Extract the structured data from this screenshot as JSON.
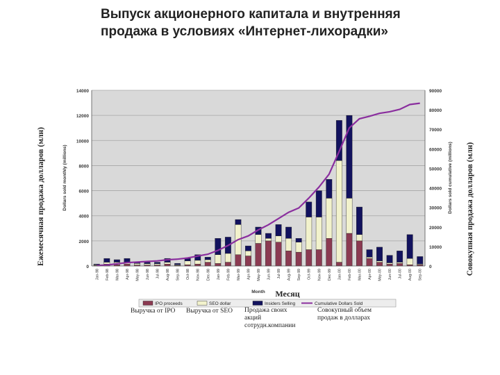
{
  "title_line1": "Выпуск акционерного капитала и внутренняя",
  "title_line2": "продажа в условиях «Интернет-лихорадки»",
  "overlay_labels": {
    "left_axis_ru": "Ежемесячная продажа долларов (млн)",
    "right_axis_ru": "Совокупная продажа долларов (млн)",
    "x_axis_ru": "Месяц",
    "legend_ipo_ru": "Выручка от IPO",
    "legend_seo_ru": "Выручка от SEO",
    "legend_insider_ru": "Продажа своих акций сотрудн.компании",
    "legend_cum_ru": "Совокупный объем продаж в долларах"
  },
  "colors": {
    "ipo": "#8b3a52",
    "seo": "#f2f2cc",
    "insider": "#12125e",
    "cumulative": "#8a2e9e",
    "plot_bg": "#d9d9d9",
    "grid": "#a6a6a6"
  },
  "chart_data": {
    "type": "bar",
    "stacked": true,
    "xlabel": "Month",
    "ylabel": "Dollars sold monthly (millions)",
    "y2label": "Dollars sold cumulative (millions)",
    "ylim": [
      0,
      14000
    ],
    "yticks": [
      "0",
      "2000",
      "4000",
      "6000",
      "8000",
      "10000",
      "12000",
      "14000"
    ],
    "y2lim": [
      0,
      90000
    ],
    "y2ticks": [
      "0",
      "10000",
      "20000",
      "30000",
      "40000",
      "50000",
      "60000",
      "70000",
      "80000",
      "90000"
    ],
    "grid": true,
    "legend_position": "bottom",
    "categories": [
      "Jan-98",
      "Feb-98",
      "Mar-98",
      "Apr-98",
      "May-98",
      "Jun-98",
      "Jul-98",
      "Aug-98",
      "Sep-98",
      "Oct-98",
      "Nov-98",
      "Dec-98",
      "Jan-99",
      "Feb-99",
      "Mar-99",
      "Apr-99",
      "May-99",
      "Jun-99",
      "Jul-99",
      "Aug-99",
      "Sep-99",
      "Oct-99",
      "Nov-99",
      "Dec-99",
      "Jan-00",
      "Feb-00",
      "Mar-00",
      "Apr-00",
      "May-00",
      "Jun-00",
      "Jul-00",
      "Aug-00",
      "Sep-00"
    ],
    "series": [
      {
        "name": "IPO proceeds",
        "values": [
          50,
          150,
          100,
          150,
          80,
          80,
          80,
          150,
          50,
          100,
          150,
          300,
          200,
          300,
          900,
          800,
          1800,
          2000,
          1900,
          1200,
          1100,
          1300,
          1300,
          2200,
          300,
          2600,
          2000,
          600,
          300,
          150,
          200,
          100,
          100
        ]
      },
      {
        "name": "SEO dollar",
        "values": [
          50,
          150,
          200,
          150,
          120,
          100,
          100,
          150,
          50,
          300,
          300,
          200,
          700,
          700,
          2400,
          400,
          700,
          200,
          500,
          1000,
          800,
          2600,
          2600,
          3200,
          8100,
          2800,
          500,
          100,
          100,
          100,
          100,
          500,
          50
        ]
      },
      {
        "name": "Insiders Selling",
        "values": [
          50,
          300,
          200,
          300,
          100,
          120,
          120,
          300,
          100,
          200,
          450,
          200,
          1300,
          1300,
          400,
          400,
          600,
          400,
          900,
          900,
          300,
          1200,
          2100,
          1500,
          3200,
          6600,
          2200,
          600,
          1100,
          600,
          900,
          1900,
          600
        ]
      }
    ],
    "line_series": {
      "name": "Cumulative Dollars Sold",
      "axis": "right",
      "values": [
        200,
        500,
        1100,
        1700,
        2000,
        2300,
        2600,
        3200,
        3500,
        4100,
        5100,
        6000,
        8000,
        10500,
        13500,
        15400,
        18500,
        21100,
        24300,
        27500,
        29700,
        34800,
        40400,
        47000,
        58700,
        70700,
        75400,
        76700,
        78200,
        79000,
        80200,
        82700,
        83400
      ]
    },
    "legend": [
      "IPO proceeds",
      "SEO dollar",
      "Insiders Selling",
      "Cumulative Dollars Sold"
    ]
  }
}
